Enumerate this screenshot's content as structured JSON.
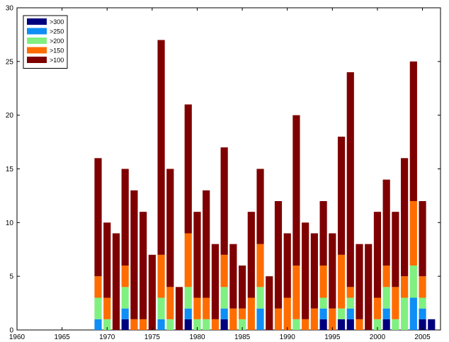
{
  "chart_data": {
    "type": "bar",
    "stacked": true,
    "title": "",
    "xlabel": "",
    "ylabel": "",
    "xlim": [
      1960,
      2007
    ],
    "ylim": [
      0,
      30
    ],
    "xticks": [
      1960,
      1965,
      1970,
      1975,
      1980,
      1985,
      1990,
      1995,
      2000,
      2005
    ],
    "yticks": [
      0,
      5,
      10,
      15,
      20,
      25,
      30
    ],
    "grid": false,
    "legend_position": "top-left",
    "x": [
      1969,
      1970,
      1971,
      1972,
      1973,
      1974,
      1975,
      1976,
      1977,
      1978,
      1979,
      1980,
      1981,
      1982,
      1983,
      1984,
      1985,
      1986,
      1987,
      1988,
      1989,
      1990,
      1991,
      1992,
      1993,
      1994,
      1995,
      1996,
      1997,
      1998,
      1999,
      2000,
      2001,
      2002,
      2003,
      2004,
      2005,
      2006
    ],
    "series": [
      {
        "name": ">300",
        "color": "#00007f",
        "values": [
          0,
          0,
          0,
          1,
          0,
          0,
          0,
          0,
          0,
          0,
          1,
          0,
          0,
          0,
          1,
          0,
          0,
          0,
          0,
          0,
          0,
          0,
          0,
          0,
          0,
          1,
          0,
          1,
          1,
          0,
          0,
          0,
          1,
          0,
          0,
          0,
          1,
          1
        ]
      },
      {
        "name": ">250",
        "color": "#0f8ef5",
        "values": [
          1,
          0,
          0,
          1,
          0,
          0,
          0,
          1,
          0,
          0,
          1,
          0,
          0,
          0,
          1,
          0,
          0,
          0,
          2,
          0,
          0,
          0,
          0,
          0,
          0,
          1,
          0,
          0,
          1,
          0,
          0,
          0,
          1,
          0,
          0,
          3,
          1,
          0
        ]
      },
      {
        "name": ">200",
        "color": "#80f080",
        "values": [
          2,
          1,
          0,
          2,
          0,
          0,
          0,
          2,
          1,
          0,
          2,
          1,
          1,
          0,
          2,
          0,
          1,
          0,
          2,
          0,
          0,
          0,
          1,
          0,
          0,
          1,
          0,
          1,
          1,
          0,
          0,
          1,
          2,
          1,
          3,
          3,
          1,
          0
        ]
      },
      {
        "name": ">150",
        "color": "#ff6d00",
        "values": [
          2,
          2,
          0,
          2,
          1,
          1,
          0,
          4,
          3,
          0,
          5,
          2,
          2,
          1,
          3,
          2,
          1,
          3,
          4,
          0,
          2,
          3,
          5,
          1,
          2,
          3,
          2,
          5,
          1,
          1,
          0,
          2,
          2,
          3,
          2,
          6,
          2,
          0
        ]
      },
      {
        "name": ">100",
        "color": "#7f0000",
        "values": [
          11,
          7,
          9,
          9,
          12,
          10,
          7,
          20,
          11,
          4,
          12,
          8,
          10,
          7,
          10,
          6,
          4,
          8,
          7,
          5,
          10,
          6,
          14,
          9,
          7,
          6,
          7,
          11,
          20,
          7,
          8,
          8,
          8,
          7,
          11,
          13,
          7,
          0
        ]
      }
    ]
  }
}
